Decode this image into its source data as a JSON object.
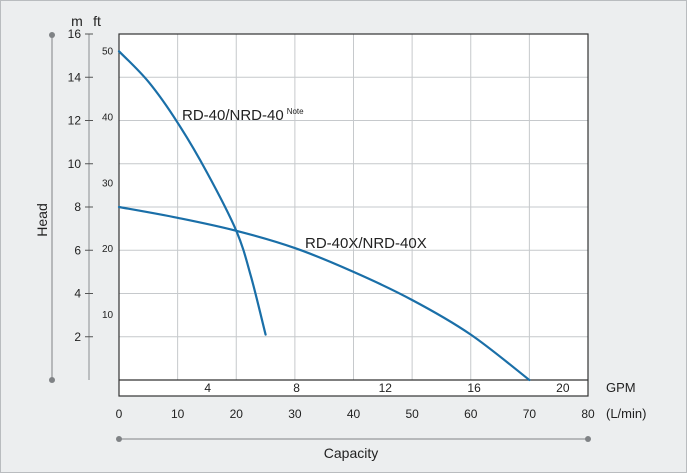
{
  "chart_data": {
    "type": "line",
    "axes": {
      "head_label": "Head",
      "head_unit_m": "m",
      "head_unit_ft": "ft",
      "capacity_label": "Capacity",
      "gpm_unit": "GPM",
      "lmin_unit": "(L/min)"
    },
    "xlim_lmin": [
      0,
      80
    ],
    "ylim_m": [
      0,
      16
    ],
    "grid": true,
    "m_ticks": [
      "2",
      "4",
      "6",
      "8",
      "10",
      "12",
      "14",
      "16"
    ],
    "ft_ticks": [
      "10",
      "20",
      "30",
      "40",
      "50"
    ],
    "lmin_ticks": [
      "0",
      "10",
      "20",
      "30",
      "40",
      "50",
      "60",
      "70",
      "80"
    ],
    "gpm_ticks": [
      "4",
      "8",
      "12",
      "16",
      "20"
    ],
    "series": [
      {
        "name": "RD-40/NRD-40",
        "superscript": "Note",
        "color": "#1a6fa8",
        "points": [
          [
            0,
            15.2
          ],
          [
            5,
            13.8
          ],
          [
            10,
            11.9
          ],
          [
            15,
            9.6
          ],
          [
            20,
            6.9
          ],
          [
            22.5,
            4.8
          ],
          [
            25,
            2.1
          ]
        ]
      },
      {
        "name": "RD-40X/NRD-40X",
        "superscript": "",
        "color": "#1a6fa8",
        "points": [
          [
            0,
            8.0
          ],
          [
            10,
            7.5
          ],
          [
            20,
            6.9
          ],
          [
            30,
            6.1
          ],
          [
            40,
            5.0
          ],
          [
            50,
            3.7
          ],
          [
            60,
            2.1
          ],
          [
            70,
            0.0
          ]
        ]
      }
    ]
  }
}
